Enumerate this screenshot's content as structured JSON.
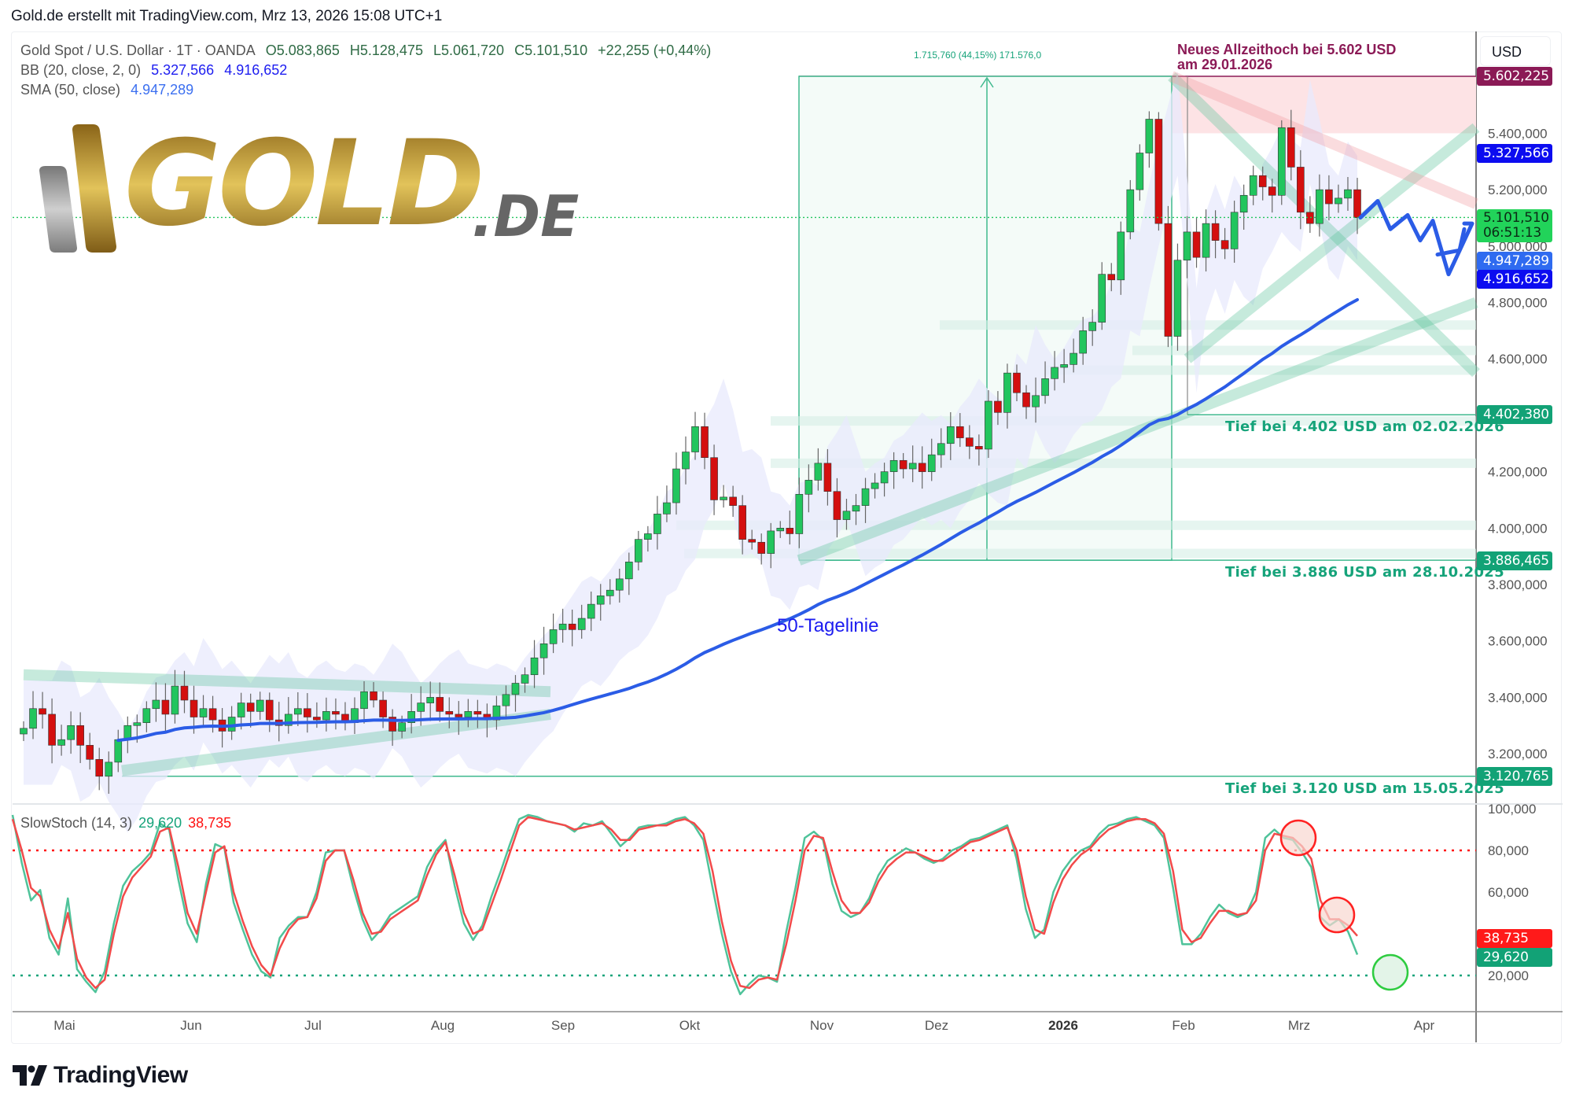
{
  "header": {
    "attribution": "Gold.de erstellt mit TradingView.com, Mrz 13, 2026 15:08 UTC+1"
  },
  "legend": {
    "symbol": "Gold Spot / U.S. Dollar · 1T · OANDA",
    "open": "O5.083,865",
    "high": "H5.128,475",
    "low": "L5.061,720",
    "close": "C5.101,510",
    "change": "+22,255 (+0,44%)",
    "bb_label": "BB (20, close, 2, 0)",
    "bb_upper": "5.327,566",
    "bb_lower": "4.916,652",
    "sma_label": "SMA (50, close)",
    "sma_value": "4.947,289"
  },
  "logo": {
    "brand": "GOLD",
    "suffix": ".DE"
  },
  "currency_button": "USD",
  "annotations": {
    "ath_line1": "Neues Allzeithoch bei 5.602 USD",
    "ath_line2": "am 29.01.2026",
    "measure": "1.715,760 (44,15%) 171.576,0",
    "low1": "Tief bei 4.402 USD am 02.02.2026",
    "low2": "Tief bei 3.886 USD am 28.10.2025",
    "low3": "Tief bei 3.120 USD am 15.05.2025",
    "sma_label": "50-Tagelinie"
  },
  "price_axis": {
    "ticks": [
      "5.400,000",
      "5.200,000",
      "5.000,000",
      "4.800,000",
      "4.600,000",
      "4.200,000",
      "4.000,000",
      "3.800,000",
      "3.600,000",
      "3.400,000",
      "3.200,000"
    ],
    "tick_values": [
      5400,
      5200,
      5000,
      4800,
      4600,
      4200,
      4000,
      3800,
      3600,
      3400,
      3200
    ],
    "badges": {
      "ath": "5.602,225",
      "bb_upper": "5.327,566",
      "last": "5.101,510",
      "countdown": "06:51:13",
      "sma": "4.947,289",
      "bb_lower": "4.916,652",
      "low_feb": "4.402,380",
      "low_oct": "3.886,465",
      "low_may": "3.120,765"
    }
  },
  "stoch": {
    "label": "SlowStoch (14, 3)",
    "k": "29,620",
    "d": "38,735",
    "ticks": [
      "100,000",
      "80,000",
      "60,000",
      "20,000"
    ],
    "badge_k": "29,620",
    "badge_d": "38,735"
  },
  "time_axis": {
    "months": [
      "Mai",
      "Jun",
      "Jul",
      "Aug",
      "Sep",
      "Okt",
      "Nov",
      "Dez",
      "2026",
      "Feb",
      "Mrz",
      "Apr"
    ]
  },
  "branding": {
    "name": "TradingView"
  },
  "colors": {
    "up": "#22c55e",
    "down": "#d40f0f",
    "sma": "#2b5ce6",
    "bb_fill": "#e8eafc",
    "zone_green": "#d6efe6",
    "ath": "#8b1a56",
    "k": "#4fc39a",
    "d": "#f24a4a"
  },
  "chart_data": [
    {
      "type": "candlestick",
      "title": "Gold Spot / U.S. Dollar · 1T · OANDA",
      "ylabel": "USD",
      "ylim": [
        3050,
        5700
      ],
      "x_ticks": [
        "Mai",
        "Jun",
        "Jul",
        "Aug",
        "Sep",
        "Okt",
        "Nov",
        "Dez",
        "2026",
        "Feb",
        "Mrz",
        "Apr"
      ],
      "close_path": [
        3290,
        3360,
        3340,
        3230,
        3250,
        3300,
        3230,
        3180,
        3120,
        3170,
        3250,
        3300,
        3310,
        3360,
        3390,
        3340,
        3440,
        3390,
        3330,
        3360,
        3320,
        3280,
        3330,
        3380,
        3350,
        3390,
        3320,
        3300,
        3340,
        3360,
        3330,
        3320,
        3350,
        3340,
        3310,
        3360,
        3420,
        3390,
        3330,
        3280,
        3310,
        3350,
        3380,
        3400,
        3350,
        3340,
        3330,
        3350,
        3340,
        3320,
        3370,
        3410,
        3450,
        3480,
        3540,
        3590,
        3640,
        3660,
        3640,
        3680,
        3730,
        3760,
        3780,
        3820,
        3880,
        3960,
        3980,
        4050,
        4090,
        4210,
        4270,
        4360,
        4250,
        4100,
        4110,
        4080,
        3960,
        3950,
        3910,
        3990,
        4000,
        3980,
        4120,
        4170,
        4230,
        4130,
        4030,
        4060,
        4080,
        4140,
        4160,
        4200,
        4240,
        4210,
        4230,
        4200,
        4260,
        4300,
        4360,
        4320,
        4290,
        4280,
        4450,
        4410,
        4550,
        4480,
        4430,
        4470,
        4530,
        4570,
        4580,
        4620,
        4700,
        4730,
        4900,
        4880,
        5050,
        5200,
        5330,
        5450,
        5080,
        4680,
        4950,
        5050,
        4960,
        5080,
        5020,
        4990,
        5120,
        5180,
        5250,
        5210,
        5180,
        5420,
        5280,
        5120,
        5080,
        5200,
        5150,
        5170,
        5200,
        5101
      ],
      "annotations": {
        "ath": 5602.225,
        "lows": [
          4402.38,
          3886.465,
          3120.765
        ]
      },
      "sma50_end": 4947.289,
      "bb_upper_end": 5327.566,
      "bb_lower_end": 4916.652
    },
    {
      "type": "line",
      "title": "SlowStoch (14, 3)",
      "ylim": [
        0,
        100
      ],
      "levels": [
        80,
        20
      ],
      "series": [
        {
          "name": "%K",
          "values": [
            97,
            74,
            56,
            61,
            38,
            30,
            57,
            23,
            17,
            12,
            22,
            45,
            63,
            70,
            74,
            79,
            93,
            90,
            66,
            45,
            36,
            64,
            83,
            81,
            55,
            42,
            30,
            22,
            19,
            38,
            44,
            48,
            48,
            60,
            79,
            80,
            80,
            62,
            47,
            37,
            42,
            49,
            52,
            55,
            58,
            72,
            80,
            85,
            63,
            45,
            37,
            44,
            58,
            70,
            83,
            95,
            97,
            96,
            94,
            93,
            92,
            89,
            93,
            92,
            94,
            88,
            82,
            86,
            91,
            92,
            92,
            93,
            95,
            96,
            92,
            85,
            62,
            40,
            22,
            11,
            16,
            20,
            19,
            17,
            41,
            62,
            86,
            89,
            85,
            64,
            51,
            48,
            50,
            57,
            68,
            75,
            78,
            81,
            79,
            76,
            74,
            76,
            80,
            82,
            85,
            86,
            88,
            90,
            92,
            76,
            52,
            38,
            42,
            60,
            70,
            76,
            80,
            82,
            88,
            92,
            93,
            95,
            96,
            94,
            92,
            86,
            62,
            35,
            35,
            40,
            48,
            54,
            50,
            48,
            50,
            60,
            86,
            90,
            86,
            85,
            79,
            72,
            48,
            44,
            47,
            41,
            30
          ]
        },
        {
          "name": "%D",
          "values": [
            95,
            80,
            62,
            58,
            42,
            33,
            50,
            28,
            19,
            14,
            18,
            40,
            58,
            67,
            72,
            77,
            89,
            91,
            72,
            50,
            40,
            60,
            79,
            82,
            60,
            46,
            34,
            25,
            20,
            33,
            42,
            47,
            48,
            57,
            75,
            80,
            80,
            66,
            50,
            40,
            41,
            47,
            50,
            53,
            56,
            68,
            78,
            84,
            68,
            50,
            40,
            42,
            54,
            66,
            79,
            92,
            96,
            95,
            94,
            93,
            92,
            90,
            91,
            92,
            93,
            90,
            85,
            85,
            90,
            91,
            92,
            92,
            94,
            95,
            93,
            88,
            70,
            46,
            27,
            15,
            14,
            18,
            19,
            18,
            35,
            56,
            80,
            87,
            86,
            70,
            56,
            50,
            50,
            55,
            65,
            72,
            76,
            79,
            79,
            77,
            75,
            75,
            78,
            81,
            84,
            85,
            87,
            89,
            91,
            80,
            58,
            42,
            40,
            55,
            66,
            73,
            78,
            81,
            86,
            90,
            92,
            94,
            95,
            95,
            93,
            88,
            70,
            42,
            36,
            38,
            45,
            51,
            51,
            49,
            50,
            56,
            80,
            88,
            87,
            86,
            82,
            76,
            56,
            47,
            47,
            44,
            39
          ]
        }
      ],
      "last": {
        "K": 29.62,
        "D": 38.735
      }
    }
  ]
}
